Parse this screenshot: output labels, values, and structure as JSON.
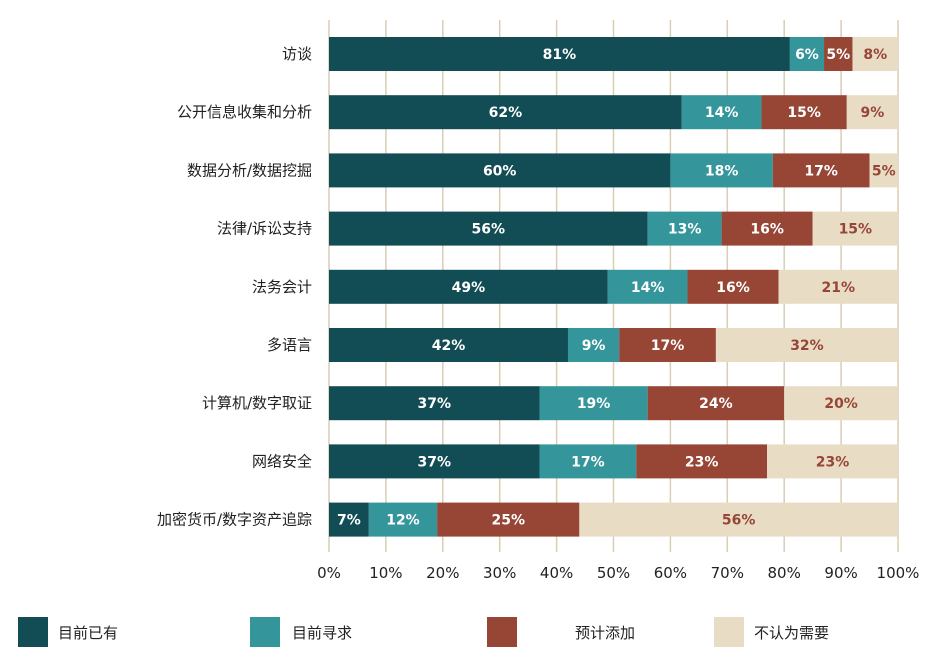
{
  "chart_data": {
    "type": "bar",
    "orientation": "horizontal",
    "stacked": true,
    "percent_axis": true,
    "categories": [
      "访谈",
      "公开信息收集和分析",
      "数据分析/数据挖掘",
      "法律/诉讼支持",
      "法务会计",
      "多语言",
      "计算机/数字取证",
      "网络安全",
      "加密货币/数字资产追踪"
    ],
    "series": [
      {
        "name": "目前已有",
        "color": "#124d55",
        "label_color": "#ffffff",
        "values": [
          81,
          62,
          60,
          56,
          49,
          42,
          37,
          37,
          7
        ],
        "labels": [
          "81%",
          "62%",
          "60%",
          "56%",
          "49%",
          "42%",
          "37%",
          "37%",
          "7%"
        ]
      },
      {
        "name": "目前寻求",
        "color": "#34959b",
        "label_color": "#ffffff",
        "values": [
          6,
          14,
          18,
          13,
          14,
          9,
          19,
          17,
          12
        ],
        "labels": [
          "6%",
          "14%",
          "18%",
          "13%",
          "14%",
          "9%",
          "19%",
          "17%",
          "12%"
        ]
      },
      {
        "name": "预计添加",
        "color": "#974636",
        "label_color": "#ffffff",
        "values": [
          5,
          15,
          17,
          16,
          16,
          17,
          24,
          23,
          25
        ],
        "labels": [
          "5%",
          "15%",
          "17%",
          "16%",
          "16%",
          "17%",
          "24%",
          "23%",
          "25%"
        ]
      },
      {
        "name": "不认为需要",
        "color": "#e8dcc5",
        "label_color": "#974636",
        "values": [
          8,
          9,
          5,
          15,
          21,
          32,
          20,
          23,
          56
        ],
        "labels": [
          "8%",
          "9%",
          "5%",
          "15%",
          "21%",
          "32%",
          "20%",
          "23%",
          "56%"
        ]
      }
    ],
    "xlim": [
      0,
      100
    ],
    "xticks": [
      "0%",
      "10%",
      "20%",
      "30%",
      "40%",
      "50%",
      "60%",
      "70%",
      "80%",
      "90%",
      "100%"
    ],
    "grid": true,
    "grid_color": "#d9cdb4",
    "legend_position": "bottom"
  }
}
